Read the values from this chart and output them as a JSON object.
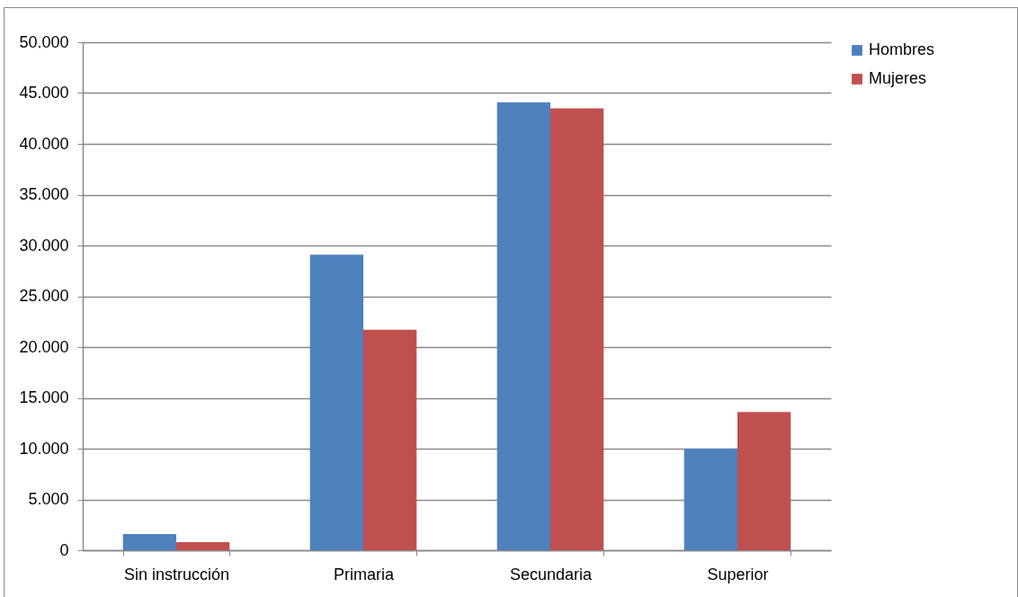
{
  "chart_data": {
    "type": "bar",
    "categories": [
      "Sin instrucción",
      "Primaria",
      "Secundaria",
      "Superior"
    ],
    "series": [
      {
        "name": "Hombres",
        "color": "#4f81bd",
        "values": [
          1600,
          29100,
          44100,
          10000
        ]
      },
      {
        "name": "Mujeres",
        "color": "#c0504d",
        "values": [
          800,
          21700,
          43500,
          13600
        ]
      }
    ],
    "ylim": [
      0,
      50000
    ],
    "yticks": [
      {
        "value": 0,
        "label": "0"
      },
      {
        "value": 5000,
        "label": "5.000"
      },
      {
        "value": 10000,
        "label": "10.000"
      },
      {
        "value": 15000,
        "label": "15.000"
      },
      {
        "value": 20000,
        "label": "20.000"
      },
      {
        "value": 25000,
        "label": "25.000"
      },
      {
        "value": 30000,
        "label": "30.000"
      },
      {
        "value": 35000,
        "label": "35.000"
      },
      {
        "value": 40000,
        "label": "40.000"
      },
      {
        "value": 45000,
        "label": "45.000"
      },
      {
        "value": 50000,
        "label": "50.000"
      }
    ],
    "grid": "y",
    "legend": "right"
  }
}
